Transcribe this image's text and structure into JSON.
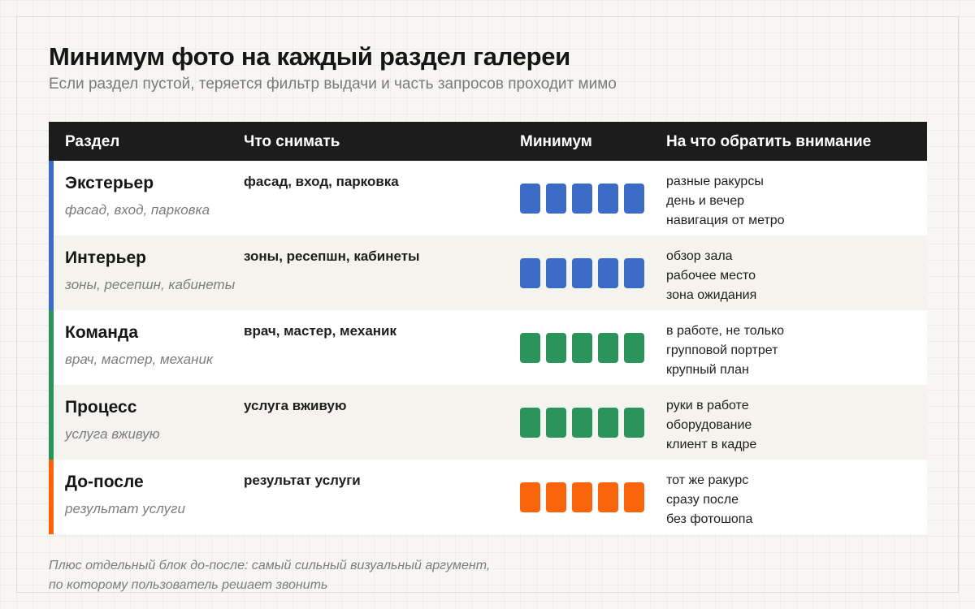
{
  "title": "Минимум фото на каждый раздел галереи",
  "subtitle": "Если раздел пустой, теряется фильтр выдачи и часть запросов проходит мимо",
  "colors": {
    "blue": "#3d6cc8",
    "green": "#2a945a",
    "orange": "#fa640a",
    "header_bg": "#1c1c1c"
  },
  "table": {
    "headers": [
      "Раздел",
      "Что снимать",
      "Минимум",
      "На что обратить внимание"
    ],
    "rows": [
      {
        "name": "Экстерьер",
        "sub": "фасад, вход, парковка",
        "what": "фасад, вход, парковка",
        "min_count": 5,
        "color": "#3d6cc8",
        "notes": [
          "разные ракурсы",
          "день и вечер",
          "навигация от метро"
        ]
      },
      {
        "name": "Интерьер",
        "sub": "зоны, ресепшн, кабинеты",
        "what": "зоны, ресепшн, кабинеты",
        "min_count": 5,
        "color": "#3d6cc8",
        "notes": [
          "обзор зала",
          "рабочее место",
          "зона ожидания"
        ]
      },
      {
        "name": "Команда",
        "sub": "врач, мастер, механик",
        "what": "врач, мастер, механик",
        "min_count": 5,
        "color": "#2a945a",
        "notes": [
          "в работе, не только",
          "групповой портрет",
          "крупный план"
        ]
      },
      {
        "name": "Процесс",
        "sub": "услуга вживую",
        "what": "услуга вживую",
        "min_count": 5,
        "color": "#2a945a",
        "notes": [
          "руки в работе",
          "оборудование",
          "клиент в кадре"
        ]
      },
      {
        "name": "До-после",
        "sub": "результат услуги",
        "what": "результат услуги",
        "min_count": 5,
        "color": "#fa640a",
        "notes": [
          "тот же ракурс",
          "сразу после",
          "без фотошопа"
        ]
      }
    ]
  },
  "footer": [
    "Плюс отдельный блок до-после: самый сильный визуальный аргумент,",
    "по которому пользователь решает звонить"
  ]
}
